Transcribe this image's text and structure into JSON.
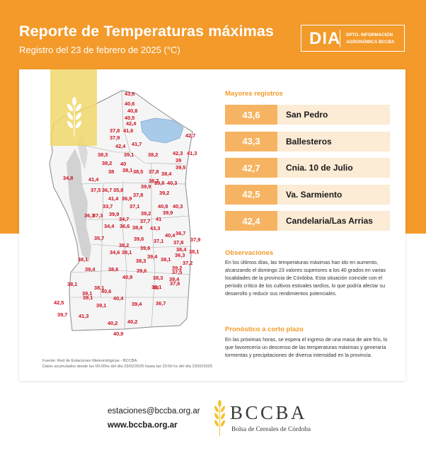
{
  "header": {
    "title": "Reporte de Temperaturas máximas",
    "subtitle": "Registro del 23 de febrero de 2025 (°C)",
    "dia_word": "DIA",
    "dia_line1": "DPTO. INFORMACIÓN",
    "dia_line2": "AGRONÓMICA BCCBA"
  },
  "colors": {
    "accent": "#F39A2B",
    "value_box": "#F6B462",
    "row_bg": "#FCEBD5",
    "map_labels": "#D01020",
    "lake": "#A9CBEA"
  },
  "map": {
    "icon": "wheat-icon",
    "temps": [
      "43,6",
      "40,6",
      "40,8",
      "40,5",
      "42,4",
      "37,8",
      "41,6",
      "37,9",
      "42,7",
      "42,4",
      "41,7",
      "42,3",
      "41,3",
      "38,3",
      "39,1",
      "38,2",
      "39",
      "38,2",
      "40",
      "39,5",
      "38",
      "38,1",
      "38,5",
      "37,8",
      "38,4",
      "34,8",
      "41,4",
      "38,7",
      "39,8",
      "40,3",
      "37,5",
      "36,7",
      "35,8",
      "39,9",
      "41,4",
      "39,2",
      "36,9",
      "37,8",
      "33,7",
      "37,1",
      "40,8",
      "40,3",
      "36,3",
      "37,3",
      "39,9",
      "34,7",
      "39,2",
      "39,9",
      "34,4",
      "36,6",
      "38,4",
      "43,3",
      "41",
      "37,7",
      "35,7",
      "39,6",
      "37,1",
      "40,4",
      "36,7",
      "37,9",
      "38,2",
      "37,8",
      "38,4",
      "34,6",
      "38,1",
      "39,6",
      "36,3",
      "38,1",
      "38,1",
      "39,4",
      "38,1",
      "37,2",
      "38,3",
      "39,2",
      "39,4",
      "38,6",
      "39,6",
      "37,5",
      "40,9",
      "38,3",
      "38,1",
      "39,4",
      "37,6",
      "40",
      "38,1",
      "39,1",
      "40,6",
      "39,1",
      "40,4",
      "38,1",
      "42,5",
      "39,1",
      "39,4",
      "36,7",
      "39,7",
      "41,3",
      "40,2",
      "40,2",
      "40,9"
    ]
  },
  "records": {
    "title": "Mayores registros",
    "items": [
      {
        "value": "43,6",
        "place": "San Pedro"
      },
      {
        "value": "43,3",
        "place": "Ballesteros"
      },
      {
        "value": "42,7",
        "place": "Cnia. 10 de Julio"
      },
      {
        "value": "42,5",
        "place": "Va. Sarmiento"
      },
      {
        "value": "42,4",
        "place": "Candelaria/Las Arrias"
      }
    ]
  },
  "observaciones": {
    "title": "Observaciones",
    "body": "En los últimos días, las temperaturas máximas han ido en aumento, alcanzando el domingo 23 valores superiores a los 40 grados en varias localidades de la provincia de Córdoba. Esta situación coincide con el período crítico de los cultivos estivales tardíos, lo que podría afectar su desarrollo y reducir sus rendimientos potenciales."
  },
  "pronostico": {
    "title": "Pronóstico a corto plazo",
    "body": "En las próximas horas, se espera el ingreso de una masa de aire frío, lo que favorecería un descenso de las temperaturas máximas y generaría tormentas y precipitaciones de diversa intensidad en la provincia."
  },
  "source": {
    "line1": "Fuente: Red de Estaciones Meteorológicas - BCCBA.",
    "line2": "Datos acumulados desde las 00:00hs del día 23/02/2025 hasta las 23:50 hs del día 23/02/2025"
  },
  "footer": {
    "email": "estaciones@bccba.org.ar",
    "web": "www.bccba.org.ar",
    "logo_name": "BCCBA",
    "logo_sub": "Bolsa de Cereales de Córdoba"
  }
}
